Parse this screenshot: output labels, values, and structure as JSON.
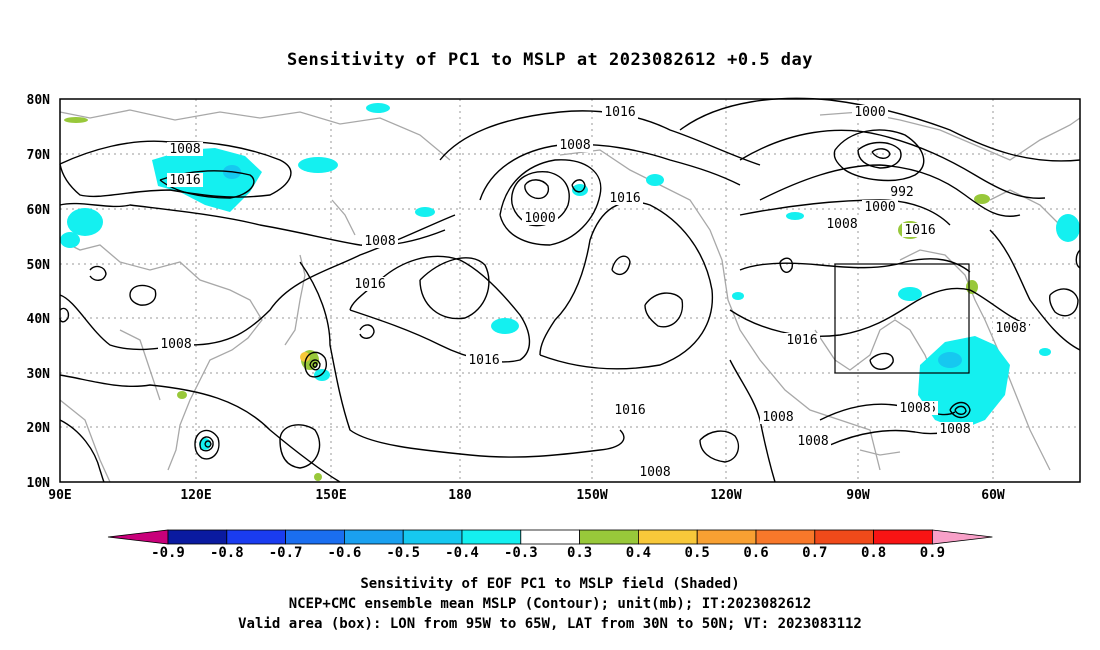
{
  "title": "Sensitivity of PC1 to MSLP at 2023082612 +0.5 day",
  "lat_labels": [
    "80N",
    "70N",
    "60N",
    "50N",
    "40N",
    "30N",
    "20N",
    "10N"
  ],
  "lon_labels": [
    "90E",
    "120E",
    "150E",
    "180",
    "150W",
    "120W",
    "90W",
    "60W"
  ],
  "contour_labels": [
    "1016",
    "1008",
    "1016",
    "1008",
    "1008",
    "1000",
    "1016",
    "1008",
    "1016",
    "1016",
    "1008",
    "1016",
    "1000",
    "992",
    "1000",
    "1008",
    "1016",
    "1016",
    "1016",
    "1008",
    "1008",
    "1008",
    "1008",
    "1008"
  ],
  "colorbar": {
    "labels": [
      "-0.9",
      "-0.8",
      "-0.7",
      "-0.6",
      "-0.5",
      "-0.4",
      "-0.3",
      "0.3",
      "0.4",
      "0.5",
      "0.6",
      "0.7",
      "0.8",
      "0.9"
    ],
    "colors": [
      "#c8007a",
      "#0a1aa0",
      "#1a3cf0",
      "#1a6ef0",
      "#1aa0f0",
      "#16c8f0",
      "#14f0f0",
      "#ffffff",
      "#98c83a",
      "#f8c83a",
      "#f8a032",
      "#f8782a",
      "#f04a1a",
      "#f81414",
      "#f8a0c8"
    ]
  },
  "valid_box": {
    "lon_from": "95W",
    "lon_to": "65W",
    "lat_from": "30N",
    "lat_to": "50N"
  },
  "captions": [
    "Sensitivity of EOF PC1 to MSLP field (Shaded)",
    "NCEP+CMC ensemble mean MSLP (Contour); unit(mb); IT:2023082612",
    "Valid area (box): LON from 95W to 65W, LAT from 30N to 50N; VT: 2023083112"
  ]
}
